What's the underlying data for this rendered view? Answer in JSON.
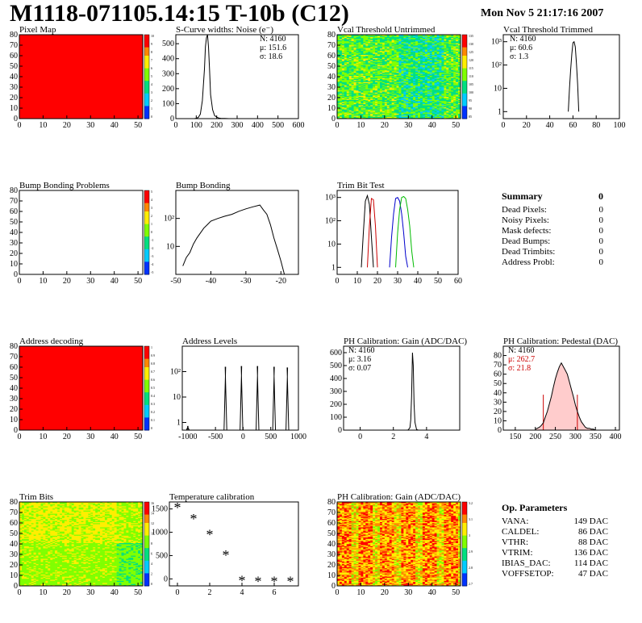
{
  "header": {
    "title": "M1118-071105.14:15 T-10b (C12)",
    "date": "Mon Nov  5 21:17:16 2007"
  },
  "chart_data": [
    {
      "id": "pixel_map",
      "type": "heatmap",
      "title": "Pixel Map",
      "xlim": [
        0,
        52
      ],
      "ylim": [
        0,
        80
      ],
      "xticks": [
        0,
        10,
        20,
        30,
        40,
        50
      ],
      "yticks": [
        0,
        10,
        20,
        30,
        40,
        50,
        60,
        70,
        80
      ],
      "fill": "uniform",
      "value": 10,
      "palette_ticks": [
        "10",
        "9",
        "8",
        "7",
        "6",
        "5",
        "4",
        "3",
        "2",
        "1",
        "0"
      ]
    },
    {
      "id": "scurve",
      "type": "line",
      "title": "S-Curve widths: Noise (e⁻)",
      "xlim": [
        0,
        600
      ],
      "ylim": [
        0,
        560
      ],
      "xticks": [
        0,
        100,
        200,
        300,
        400,
        500,
        600
      ],
      "yticks": [
        0,
        100,
        200,
        300,
        400,
        500
      ],
      "stats": [
        "N: 4160",
        "μ: 151.6",
        "σ: 18.6"
      ],
      "x": [
        90,
        100,
        110,
        120,
        130,
        140,
        145,
        150,
        155,
        160,
        165,
        170,
        180,
        190,
        200,
        210,
        220,
        240,
        260,
        280,
        300
      ],
      "y": [
        0,
        2,
        8,
        30,
        120,
        330,
        480,
        540,
        560,
        480,
        330,
        160,
        60,
        20,
        10,
        4,
        2,
        1,
        0,
        0,
        0
      ]
    },
    {
      "id": "vcal_untrimmed",
      "type": "heatmap",
      "title": "Vcal Threshold Untrimmed",
      "xlim": [
        0,
        52
      ],
      "ylim": [
        0,
        80
      ],
      "xticks": [
        0,
        10,
        20,
        30,
        40,
        50
      ],
      "yticks": [
        0,
        10,
        20,
        30,
        40,
        50,
        60,
        70,
        80
      ],
      "fill": "noise_cool",
      "palette_ticks": [
        "135",
        "130",
        "125",
        "120",
        "115",
        "110",
        "105",
        "100",
        "95",
        "90",
        "85"
      ]
    },
    {
      "id": "vcal_trimmed",
      "type": "line",
      "title": "Vcal Threshold Trimmed",
      "log": true,
      "xlim": [
        0,
        100
      ],
      "ylim": [
        0.5,
        2000
      ],
      "xticks": [
        0,
        20,
        40,
        60,
        80,
        100
      ],
      "ytick_labels": [
        "1",
        "10",
        "10²",
        "10³"
      ],
      "stats": [
        "N: 4160",
        "μ: 60.6",
        "σ:  1.3"
      ],
      "x": [
        56,
        57,
        58,
        59,
        60,
        61,
        62,
        63,
        64,
        65
      ],
      "y": [
        1,
        10,
        60,
        300,
        900,
        1000,
        600,
        120,
        15,
        1
      ]
    },
    {
      "id": "bump_problems",
      "type": "heatmap",
      "title": "Bump Bonding Problems",
      "xlim": [
        0,
        52
      ],
      "ylim": [
        0,
        80
      ],
      "xticks": [
        0,
        10,
        20,
        30,
        40,
        50
      ],
      "yticks": [
        0,
        10,
        20,
        30,
        40,
        50,
        60,
        70,
        80
      ],
      "fill": "empty",
      "palette_ticks": [
        "5",
        "4",
        "3",
        "2",
        "1",
        "0",
        "-1",
        "-2",
        "-3",
        "-4",
        "-5"
      ]
    },
    {
      "id": "bump_bonding",
      "type": "line",
      "title": "Bump Bonding",
      "log": true,
      "xlim": [
        -50,
        -15
      ],
      "ylim": [
        1,
        1000
      ],
      "xticks": [
        -50,
        -40,
        -30,
        -20
      ],
      "ytick_labels": [
        "10",
        "10²"
      ],
      "x": [
        -48,
        -47,
        -46,
        -45,
        -44,
        -43,
        -42,
        -41,
        -40,
        -38,
        -36,
        -34,
        -32,
        -30,
        -28,
        -26,
        -25,
        -24,
        -23,
        -22,
        -21,
        -20,
        -19
      ],
      "y": [
        2,
        4,
        6,
        12,
        20,
        30,
        45,
        60,
        80,
        100,
        120,
        140,
        180,
        220,
        260,
        300,
        200,
        140,
        60,
        20,
        8,
        3,
        1
      ]
    },
    {
      "id": "trim_bit_test",
      "type": "line",
      "title": "Trim Bit Test",
      "log": true,
      "xlim": [
        0,
        60
      ],
      "ylim": [
        0.5,
        2000
      ],
      "xticks": [
        0,
        10,
        20,
        30,
        40,
        50,
        60
      ],
      "ytick_labels": [
        "1",
        "10",
        "10²",
        "10³"
      ],
      "series": [
        {
          "color": "#000000",
          "x": [
            12,
            13,
            14,
            15,
            16,
            17,
            18
          ],
          "y": [
            1,
            30,
            700,
            1200,
            500,
            20,
            1
          ]
        },
        {
          "color": "#cc0000",
          "x": [
            15,
            16,
            17,
            18,
            19,
            20
          ],
          "y": [
            1,
            60,
            900,
            800,
            60,
            1
          ]
        },
        {
          "color": "#0000cc",
          "x": [
            26,
            27,
            28,
            29,
            30,
            31,
            32,
            33,
            34,
            35
          ],
          "y": [
            1,
            20,
            200,
            900,
            1000,
            700,
            200,
            30,
            3,
            1
          ]
        },
        {
          "color": "#00bb00",
          "x": [
            29,
            30,
            31,
            32,
            33,
            34,
            35,
            36,
            37,
            38
          ],
          "y": [
            1,
            30,
            300,
            1000,
            1100,
            900,
            300,
            60,
            5,
            1
          ]
        }
      ]
    },
    {
      "id": "address_decoding",
      "type": "heatmap",
      "title": "Address decoding",
      "xlim": [
        0,
        52
      ],
      "ylim": [
        0,
        80
      ],
      "xticks": [
        0,
        10,
        20,
        30,
        40,
        50
      ],
      "yticks": [
        0,
        10,
        20,
        30,
        40,
        50,
        60,
        70,
        80
      ],
      "fill": "uniform",
      "value": 1,
      "palette_ticks": [
        "1",
        "0.9",
        "0.8",
        "0.7",
        "0.6",
        "0.5",
        "0.4",
        "0.3",
        "0.2",
        "0.1",
        "0"
      ]
    },
    {
      "id": "address_levels",
      "type": "line",
      "title": "Address Levels",
      "log": true,
      "xlim": [
        -1100,
        1000
      ],
      "ylim": [
        0.5,
        1000
      ],
      "xticks": [
        -1000,
        -500,
        0,
        500,
        1000
      ],
      "ytick_labels": [
        "1",
        "10",
        "10²"
      ],
      "peaks": [
        -1000,
        -320,
        -30,
        260,
        560,
        800
      ],
      "heights": [
        0.7,
        150,
        160,
        160,
        150,
        140
      ]
    },
    {
      "id": "ph_gain",
      "type": "line",
      "title": "PH Calibration: Gain (ADC/DAC)",
      "xlim": [
        -1,
        6
      ],
      "ylim": [
        0,
        650
      ],
      "xticks": [
        0,
        2,
        4
      ],
      "yticks": [
        0,
        100,
        200,
        300,
        400,
        500,
        600
      ],
      "stats": [
        "N: 4160",
        "μ: 3.16",
        "σ: 0.07"
      ],
      "x": [
        2.8,
        2.9,
        3.0,
        3.05,
        3.1,
        3.15,
        3.2,
        3.25,
        3.3,
        3.4,
        3.5
      ],
      "y": [
        0,
        2,
        20,
        80,
        260,
        600,
        500,
        200,
        60,
        5,
        0
      ]
    },
    {
      "id": "ph_pedestal",
      "type": "line",
      "title": "PH Calibration: Pedestal (DAC)",
      "xlim": [
        120,
        410
      ],
      "ylim": [
        0,
        90
      ],
      "xticks": [
        150,
        200,
        250,
        300,
        350,
        400
      ],
      "yticks": [
        0,
        10,
        20,
        30,
        40,
        50,
        60,
        70,
        80
      ],
      "stats": [
        "N: 4160",
        "μ: 262.7",
        "σ: 21.8"
      ],
      "x": [
        200,
        205,
        210,
        215,
        220,
        225,
        230,
        235,
        240,
        245,
        250,
        255,
        260,
        265,
        270,
        275,
        280,
        285,
        290,
        295,
        300,
        305,
        310,
        315,
        320,
        325,
        330,
        335,
        340,
        345,
        350
      ],
      "y": [
        1,
        2,
        3,
        5,
        8,
        14,
        20,
        28,
        36,
        46,
        55,
        62,
        68,
        72,
        68,
        64,
        60,
        52,
        44,
        36,
        27,
        20,
        14,
        9,
        6,
        3,
        2,
        2,
        1,
        1,
        0
      ]
    },
    {
      "id": "trim_bits",
      "type": "heatmap",
      "title": "Trim Bits",
      "xlim": [
        0,
        52
      ],
      "ylim": [
        0,
        80
      ],
      "xticks": [
        0,
        10,
        20,
        30,
        40,
        50
      ],
      "yticks": [
        0,
        10,
        20,
        30,
        40,
        50,
        60,
        70,
        80
      ],
      "fill": "noise_trim",
      "palette_ticks": [
        "16",
        "14",
        "12",
        "10",
        "8",
        "6",
        "4",
        "2",
        "0"
      ]
    },
    {
      "id": "temperature",
      "type": "scatter",
      "title": "Temperature calibration",
      "xlim": [
        -0.5,
        7.5
      ],
      "ylim": [
        -150,
        1650
      ],
      "xticks": [
        0,
        2,
        4,
        6
      ],
      "yticks": [
        0,
        500,
        1000,
        1500
      ],
      "x": [
        0,
        1,
        2,
        3,
        4,
        5,
        6,
        7
      ],
      "y": [
        1560,
        1320,
        980,
        540,
        0,
        -20,
        -20,
        -20
      ]
    },
    {
      "id": "ph_gain_map",
      "type": "heatmap",
      "title": "PH Calibration: Gain (ADC/DAC)",
      "xlim": [
        0,
        52
      ],
      "ylim": [
        0,
        80
      ],
      "xticks": [
        0,
        10,
        20,
        30,
        40,
        50
      ],
      "yticks": [
        0,
        10,
        20,
        30,
        40,
        50,
        60,
        70,
        80
      ],
      "fill": "noise_warm",
      "palette_ticks": [
        "3.2",
        "3.1",
        "3",
        "2.9",
        "2.8",
        "2.7"
      ]
    }
  ],
  "summary": {
    "title": "Summary",
    "total": "0",
    "rows": [
      {
        "label": "Dead Pixels:",
        "value": "0"
      },
      {
        "label": "Noisy Pixels:",
        "value": "0"
      },
      {
        "label": "Mask defects:",
        "value": "0"
      },
      {
        "label": "Dead Bumps:",
        "value": "0"
      },
      {
        "label": "Dead Trimbits:",
        "value": "0"
      },
      {
        "label": "Address Probl:",
        "value": "0"
      }
    ]
  },
  "op_params": {
    "title": "Op. Parameters",
    "rows": [
      {
        "label": "VANA:",
        "value": "149 DAC"
      },
      {
        "label": "CALDEL:",
        "value": "86 DAC"
      },
      {
        "label": "VTHR:",
        "value": "88 DAC"
      },
      {
        "label": "VTRIM:",
        "value": "136 DAC"
      },
      {
        "label": "IBIAS_DAC:",
        "value": "114 DAC"
      },
      {
        "label": "VOFFSETOP:",
        "value": "47 DAC"
      }
    ]
  }
}
